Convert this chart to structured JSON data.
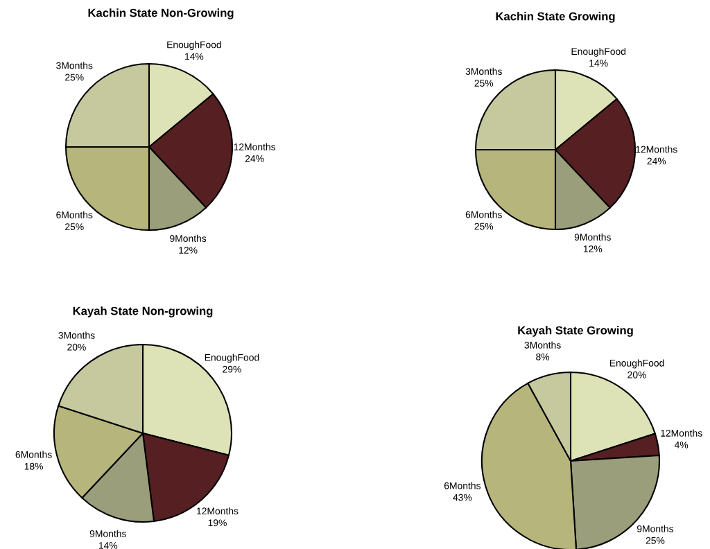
{
  "chart_data": [
    {
      "type": "pie",
      "title": "Kachin State Non-Growing",
      "categories": [
        "EnoughFood",
        "12Months",
        "9Months",
        "6Months",
        "3Months"
      ],
      "values": [
        14,
        24,
        12,
        25,
        25
      ],
      "value_labels": [
        "14%",
        "24%",
        "12%",
        "25%",
        "25%"
      ],
      "colors": [
        "#dde3b6",
        "#561f22",
        "#9a9e7a",
        "#b5b57c",
        "#c6c99e"
      ]
    },
    {
      "type": "pie",
      "title": "Kachin State Growing",
      "categories": [
        "EnoughFood",
        "12Months",
        "9Months",
        "6Months",
        "3Months"
      ],
      "values": [
        14,
        24,
        12,
        25,
        25
      ],
      "value_labels": [
        "14%",
        "24%",
        "12%",
        "25%",
        "25%"
      ],
      "colors": [
        "#dde3b6",
        "#561f22",
        "#9a9e7a",
        "#b5b57c",
        "#c6c99e"
      ]
    },
    {
      "type": "pie",
      "title": "Kayah State Non-growing",
      "categories": [
        "EnoughFood",
        "12Months",
        "9Months",
        "6Months",
        "3Months"
      ],
      "values": [
        29,
        19,
        14,
        18,
        20
      ],
      "value_labels": [
        "29%",
        "19%",
        "14%",
        "18%",
        "20%"
      ],
      "colors": [
        "#dde3b6",
        "#561f22",
        "#9a9e7a",
        "#b5b57c",
        "#c6c99e"
      ]
    },
    {
      "type": "pie",
      "title": "Kayah State Growing",
      "categories": [
        "EnoughFood",
        "12Months",
        "9Months",
        "6Months",
        "3Months"
      ],
      "values": [
        20,
        4,
        25,
        43,
        8
      ],
      "value_labels": [
        "20%",
        "4%",
        "25%",
        "43%",
        "8%"
      ],
      "colors": [
        "#dde3b6",
        "#561f22",
        "#9a9e7a",
        "#b5b57c",
        "#c6c99e"
      ]
    }
  ]
}
